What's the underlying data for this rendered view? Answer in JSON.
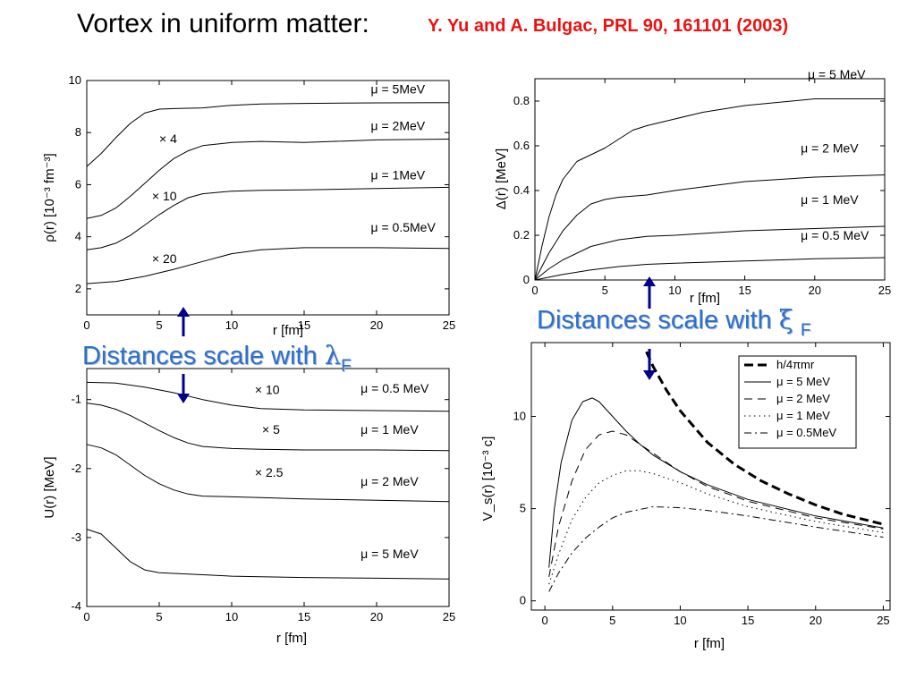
{
  "header": {
    "title": "Vortex in uniform matter:",
    "citation": "Y. Yu and A. Bulgac, PRL 90, 161101 (2003)"
  },
  "callouts": {
    "left": {
      "text": "Distances scale with ",
      "symbol": "λ",
      "subscript": "F"
    },
    "right": {
      "text": "Distances scale with ",
      "symbol": "ξ",
      "subscript": "F"
    }
  },
  "colors": {
    "accent": "#2f6fc8",
    "citation": "#ee1111",
    "arrow": "#00008b",
    "line": "#000000"
  },
  "chart_data": [
    {
      "id": "density",
      "type": "line",
      "xlabel": "r [fm]",
      "ylabel": "ρ(r) [10⁻³ fm⁻³]",
      "xlim": [
        0,
        25
      ],
      "ylim": [
        1,
        10
      ],
      "xticks": [
        0,
        5,
        10,
        15,
        20,
        25
      ],
      "yticks": [
        2,
        4,
        6,
        8,
        10
      ],
      "series": [
        {
          "name": "μ = 5MeV",
          "x": [
            0,
            1,
            2,
            3,
            4,
            5,
            6,
            8,
            10,
            12,
            15,
            20,
            25
          ],
          "y": [
            6.7,
            7.2,
            7.8,
            8.35,
            8.75,
            8.9,
            8.92,
            8.95,
            9.05,
            9.1,
            9.12,
            9.14,
            9.15
          ]
        },
        {
          "name": "μ = 2MeV",
          "x": [
            0,
            1,
            2,
            3,
            4,
            5,
            6,
            7,
            8,
            10,
            12,
            15,
            20,
            25
          ],
          "y": [
            4.7,
            4.82,
            5.1,
            5.55,
            6.05,
            6.55,
            7.0,
            7.3,
            7.5,
            7.62,
            7.66,
            7.62,
            7.72,
            7.75
          ]
        },
        {
          "name": "μ = 1MeV",
          "x": [
            0,
            1,
            2,
            3,
            4,
            5,
            6,
            7,
            8,
            10,
            12,
            15,
            20,
            25
          ],
          "y": [
            3.5,
            3.58,
            3.75,
            4.05,
            4.45,
            4.85,
            5.2,
            5.5,
            5.65,
            5.75,
            5.78,
            5.8,
            5.85,
            5.9
          ]
        },
        {
          "name": "μ = 0.5MeV",
          "x": [
            0,
            2,
            4,
            6,
            8,
            10,
            12,
            15,
            20,
            25
          ],
          "y": [
            2.2,
            2.28,
            2.48,
            2.75,
            3.05,
            3.35,
            3.5,
            3.58,
            3.58,
            3.55
          ]
        }
      ],
      "annotations": [
        {
          "text": "μ = 5MeV",
          "x": 19.6,
          "y": 9.5
        },
        {
          "text": "μ = 2MeV",
          "x": 19.6,
          "y": 8.1
        },
        {
          "text": "μ = 1MeV",
          "x": 19.6,
          "y": 6.2
        },
        {
          "text": "μ = 0.5MeV",
          "x": 19.6,
          "y": 4.2
        },
        {
          "text": "× 4",
          "x": 5.0,
          "y": 7.6
        },
        {
          "text": "× 10",
          "x": 4.5,
          "y": 5.4
        },
        {
          "text": "× 20",
          "x": 4.5,
          "y": 3.0
        }
      ]
    },
    {
      "id": "gap",
      "type": "line",
      "xlabel": "r [fm]",
      "ylabel": "Δ(r) [MeV]",
      "xlim": [
        0,
        25
      ],
      "ylim": [
        0,
        0.9
      ],
      "xticks": [
        0,
        5,
        10,
        15,
        20,
        25
      ],
      "yticks": [
        0,
        0.2,
        0.4,
        0.6,
        0.8
      ],
      "series": [
        {
          "name": "μ = 5 MeV",
          "x": [
            0,
            0.5,
            1,
            1.5,
            2,
            3,
            4,
            5,
            6,
            7,
            8,
            10,
            12,
            15,
            20,
            25
          ],
          "y": [
            0,
            0.15,
            0.28,
            0.38,
            0.45,
            0.53,
            0.56,
            0.59,
            0.63,
            0.67,
            0.69,
            0.72,
            0.75,
            0.78,
            0.81,
            0.81
          ]
        },
        {
          "name": "μ = 2 MeV",
          "x": [
            0,
            1,
            2,
            3,
            4,
            5,
            6,
            8,
            10,
            15,
            20,
            25
          ],
          "y": [
            0,
            0.12,
            0.22,
            0.29,
            0.34,
            0.36,
            0.37,
            0.38,
            0.4,
            0.44,
            0.46,
            0.47
          ]
        },
        {
          "name": "μ = 1 MeV",
          "x": [
            0,
            1,
            2,
            4,
            6,
            8,
            10,
            15,
            20,
            25
          ],
          "y": [
            0,
            0.05,
            0.09,
            0.15,
            0.18,
            0.195,
            0.2,
            0.22,
            0.23,
            0.24
          ]
        },
        {
          "name": "μ = 0.5 MeV",
          "x": [
            0,
            2,
            4,
            6,
            8,
            10,
            15,
            20,
            25
          ],
          "y": [
            0,
            0.025,
            0.045,
            0.06,
            0.07,
            0.075,
            0.085,
            0.095,
            0.1
          ]
        }
      ],
      "annotations": [
        {
          "text": "μ = 5 MeV",
          "x": 19.5,
          "y": 0.9
        },
        {
          "text": "μ = 2 MeV",
          "x": 19.0,
          "y": 0.57
        },
        {
          "text": "μ = 1 MeV",
          "x": 19.0,
          "y": 0.34
        },
        {
          "text": "μ = 0.5 MeV",
          "x": 19.0,
          "y": 0.18
        }
      ]
    },
    {
      "id": "potential",
      "type": "line",
      "xlabel": "r [fm]",
      "ylabel": "U(r) [MeV]",
      "xlim": [
        0,
        25
      ],
      "ylim": [
        -4,
        -0.55
      ],
      "xticks": [
        0,
        5,
        10,
        15,
        20,
        25
      ],
      "yticks": [
        -4,
        -3,
        -2,
        -1
      ],
      "series": [
        {
          "name": "μ = 0.5 MeV",
          "x": [
            0,
            2,
            4,
            6,
            8,
            10,
            12,
            15,
            20,
            25
          ],
          "y": [
            -0.75,
            -0.76,
            -0.82,
            -0.9,
            -1.0,
            -1.08,
            -1.13,
            -1.15,
            -1.16,
            -1.17
          ]
        },
        {
          "name": "μ = 1 MeV",
          "x": [
            0,
            1,
            2,
            3,
            4,
            5,
            6,
            7,
            8,
            10,
            12,
            15,
            20,
            25
          ],
          "y": [
            -1.05,
            -1.08,
            -1.14,
            -1.23,
            -1.34,
            -1.45,
            -1.55,
            -1.63,
            -1.68,
            -1.71,
            -1.72,
            -1.73,
            -1.73,
            -1.74
          ]
        },
        {
          "name": "μ = 2 MeV",
          "x": [
            0,
            1,
            2,
            3,
            4,
            5,
            6,
            7,
            8,
            10,
            12,
            15,
            20,
            25
          ],
          "y": [
            -1.65,
            -1.7,
            -1.8,
            -1.95,
            -2.1,
            -2.22,
            -2.31,
            -2.37,
            -2.4,
            -2.41,
            -2.42,
            -2.44,
            -2.46,
            -2.48
          ]
        },
        {
          "name": "μ = 5 MeV",
          "x": [
            0,
            1,
            2,
            3,
            4,
            5,
            6,
            8,
            10,
            12,
            15,
            20,
            25
          ],
          "y": [
            -2.88,
            -2.95,
            -3.15,
            -3.35,
            -3.47,
            -3.51,
            -3.52,
            -3.54,
            -3.56,
            -3.57,
            -3.58,
            -3.59,
            -3.6
          ]
        }
      ],
      "annotations": [
        {
          "text": "μ = 0.5 MeV",
          "x": 18.9,
          "y": -0.9
        },
        {
          "text": "μ = 1 MeV",
          "x": 18.9,
          "y": -1.5
        },
        {
          "text": "μ = 2 MeV",
          "x": 18.9,
          "y": -2.25
        },
        {
          "text": "μ = 5 MeV",
          "x": 18.9,
          "y": -3.3
        },
        {
          "text": "× 10",
          "x": 11.6,
          "y": -0.92
        },
        {
          "text": "× 5",
          "x": 12.1,
          "y": -1.5
        },
        {
          "text": "× 2.5",
          "x": 11.6,
          "y": -2.12
        }
      ]
    },
    {
      "id": "velocity",
      "type": "line",
      "xlabel": "r [fm]",
      "ylabel": "V_s(r) [10⁻³ c]",
      "xlim": [
        -1,
        25.5
      ],
      "ylim": [
        -0.5,
        14
      ],
      "xticks": [
        0,
        5,
        10,
        15,
        20,
        25
      ],
      "yticks": [
        0,
        5,
        10
      ],
      "legend": "top-right",
      "series": [
        {
          "name": "h/4πmr",
          "style": "bold-dashed",
          "x": [
            7.5,
            8,
            9,
            10,
            12,
            14,
            16,
            18,
            20,
            22,
            25
          ],
          "y": [
            13.5,
            12.7,
            11.4,
            10.3,
            8.6,
            7.4,
            6.5,
            5.8,
            5.2,
            4.7,
            4.15
          ]
        },
        {
          "name": "μ = 5 MeV",
          "style": "solid",
          "x": [
            0.3,
            0.7,
            1.2,
            2,
            2.8,
            3.5,
            4,
            5,
            6,
            7,
            8,
            10,
            12,
            15,
            20,
            25
          ],
          "y": [
            1.8,
            5.0,
            7.5,
            9.8,
            10.8,
            11.0,
            10.8,
            10.0,
            9.2,
            8.5,
            7.9,
            7.0,
            6.3,
            5.5,
            4.6,
            3.95
          ]
        },
        {
          "name": "μ = 2 MeV",
          "style": "dashed",
          "x": [
            0.3,
            1,
            2,
            3,
            4,
            5,
            6,
            8,
            10,
            12,
            15,
            20,
            25
          ],
          "y": [
            1.3,
            4.0,
            6.5,
            8.2,
            9.0,
            9.2,
            9.0,
            8.0,
            7.0,
            6.2,
            5.4,
            4.5,
            3.9
          ]
        },
        {
          "name": "μ = 1 MeV",
          "style": "dotted",
          "x": [
            0.3,
            1,
            2,
            3,
            4,
            5,
            6,
            7,
            8,
            10,
            12,
            15,
            20,
            25
          ],
          "y": [
            0.9,
            2.5,
            4.4,
            5.6,
            6.4,
            6.8,
            7.05,
            7.05,
            6.9,
            6.4,
            5.8,
            5.1,
            4.3,
            3.7
          ]
        },
        {
          "name": "μ = 0.5MeV",
          "style": "dashdot",
          "x": [
            0.3,
            1,
            2,
            3,
            4,
            5,
            6,
            8,
            10,
            12,
            15,
            20,
            25
          ],
          "y": [
            0.5,
            1.5,
            2.6,
            3.4,
            4.0,
            4.5,
            4.8,
            5.1,
            5.05,
            4.9,
            4.6,
            4.0,
            3.45
          ]
        }
      ]
    }
  ]
}
